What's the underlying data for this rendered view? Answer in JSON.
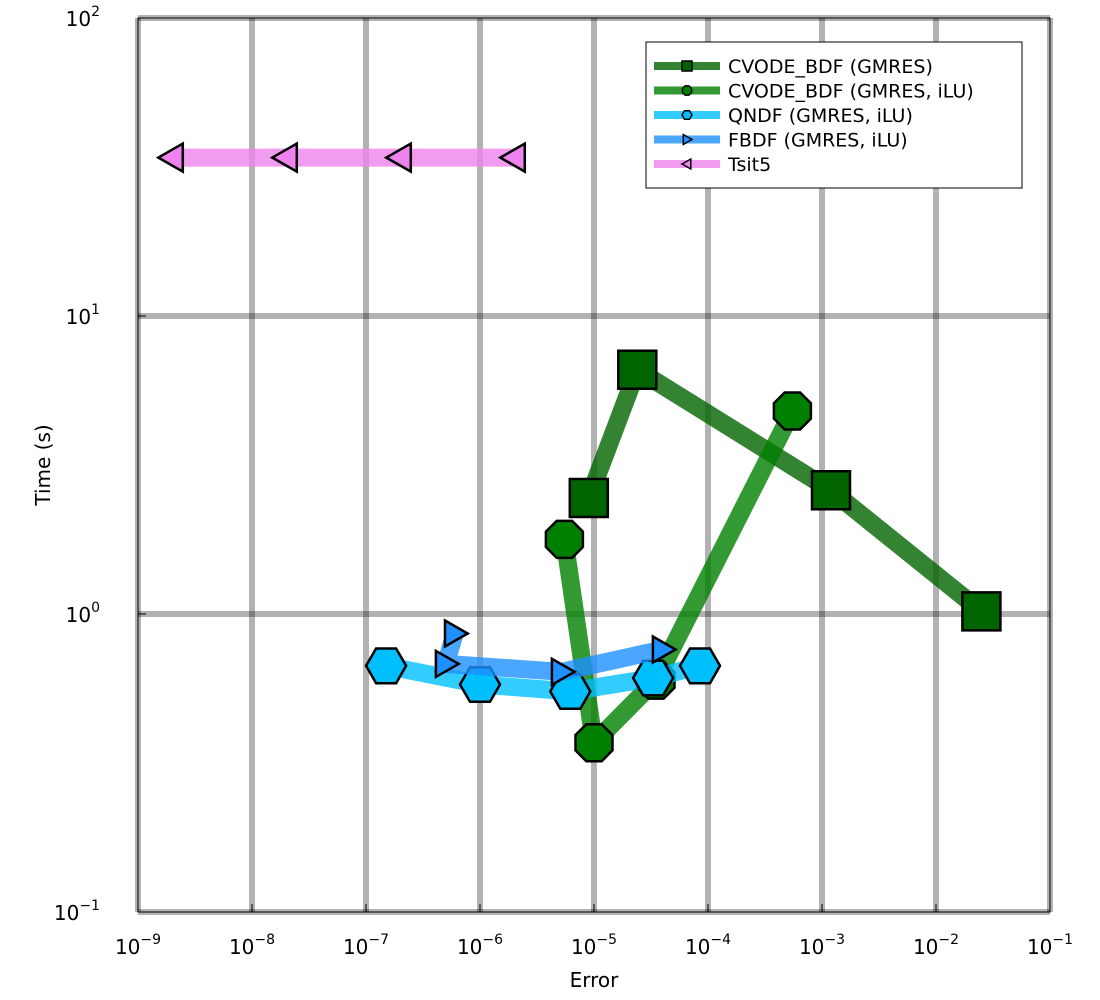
{
  "chart_data": {
    "type": "line",
    "title": "",
    "xlabel": "Error",
    "ylabel": "Time (s)",
    "xscale": "log",
    "yscale": "log",
    "xlim": [
      1e-09,
      0.1
    ],
    "ylim": [
      0.1,
      100
    ],
    "x_ticks": [
      {
        "base": "10",
        "exp": "−9"
      },
      {
        "base": "10",
        "exp": "−8"
      },
      {
        "base": "10",
        "exp": "−7"
      },
      {
        "base": "10",
        "exp": "−6"
      },
      {
        "base": "10",
        "exp": "−5"
      },
      {
        "base": "10",
        "exp": "−4"
      },
      {
        "base": "10",
        "exp": "−3"
      },
      {
        "base": "10",
        "exp": "−2"
      },
      {
        "base": "10",
        "exp": "−1"
      }
    ],
    "y_ticks": [
      {
        "base": "10",
        "exp": "−1"
      },
      {
        "base": "10",
        "exp": "0"
      },
      {
        "base": "10",
        "exp": "1"
      },
      {
        "base": "10",
        "exp": "2"
      }
    ],
    "grid": true,
    "legend_position": "top-right",
    "series": [
      {
        "name": "CVODE_BDF (GMRES)",
        "color": "#006400",
        "marker": "square",
        "x": [
          9e-06,
          2.4e-05,
          0.0012,
          0.025
        ],
        "y": [
          2.45,
          6.6,
          2.6,
          1.02
        ]
      },
      {
        "name": "CVODE_BDF (GMRES, iLU)",
        "color": "#008000",
        "marker": "octagon",
        "x": [
          5.5e-06,
          1e-05,
          3.5e-05,
          0.00055
        ],
        "y": [
          1.78,
          0.37,
          0.6,
          4.8
        ]
      },
      {
        "name": "QNDF (GMRES, iLU)",
        "color": "#00bfff",
        "marker": "hexagon",
        "x": [
          1.5e-07,
          1e-06,
          6.2e-06,
          3.3e-05,
          8.5e-05
        ],
        "y": [
          0.67,
          0.58,
          0.55,
          0.61,
          0.67
        ]
      },
      {
        "name": "FBDF (GMRES, iLU)",
        "color": "#1e90ff",
        "marker": "triangle-right",
        "x": [
          6e-07,
          5e-07,
          5.2e-06,
          4e-05
        ],
        "y": [
          0.86,
          0.68,
          0.64,
          0.76
        ]
      },
      {
        "name": "Tsit5",
        "color": "#ee82ee",
        "marker": "triangle-left",
        "x": [
          2e-09,
          2e-08,
          2e-07,
          2e-06
        ],
        "y": [
          34,
          34,
          34,
          34
        ]
      }
    ]
  }
}
